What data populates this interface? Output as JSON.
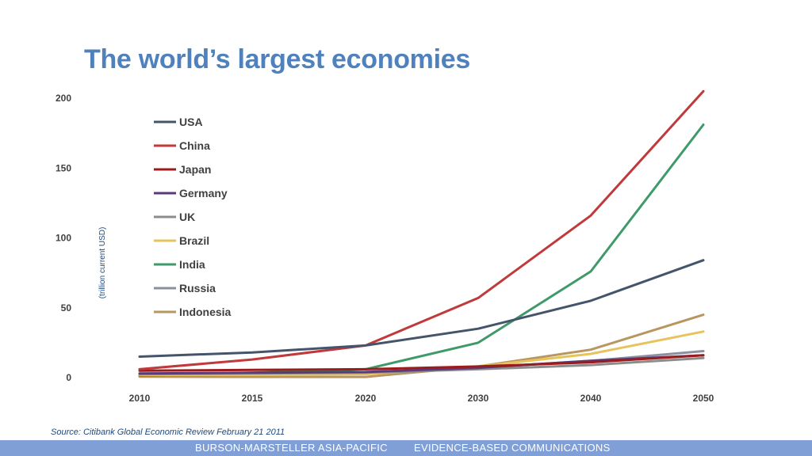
{
  "slide": {
    "title": "The world’s largest economies",
    "source": "Source: Citibank Global Economic Review February 21 2011",
    "footer_left": "BURSON-MARSTELLER ASIA-PACIFIC",
    "footer_right": "EVIDENCE-BASED COMMUNICATIONS"
  },
  "chart_data": {
    "type": "line",
    "title": "",
    "xlabel": "",
    "ylabel": "(trillion current USD)",
    "x": [
      2010,
      2015,
      2020,
      2030,
      2040,
      2050
    ],
    "x_ticks": [
      "2010",
      "2015",
      "2020",
      "2030",
      "2040",
      "2050"
    ],
    "y_ticks": [
      0,
      50,
      100,
      150,
      200
    ],
    "ylim": [
      0,
      200
    ],
    "grid": false,
    "legend_position": "top-left",
    "series": [
      {
        "name": "USA",
        "color": "#44546a",
        "values": [
          15,
          18,
          23,
          35,
          55,
          84
        ]
      },
      {
        "name": "China",
        "color": "#c0393b",
        "values": [
          6,
          13,
          23,
          57,
          116,
          205
        ]
      },
      {
        "name": "Japan",
        "color": "#9b1c1c",
        "values": [
          5,
          5.5,
          6,
          8,
          11,
          16
        ]
      },
      {
        "name": "Germany",
        "color": "#5b3a7a",
        "values": [
          3,
          3.5,
          4,
          7,
          12,
          16
        ]
      },
      {
        "name": "UK",
        "color": "#8c8c8c",
        "values": [
          2.5,
          3,
          3.5,
          6,
          9,
          14
        ]
      },
      {
        "name": "Brazil",
        "color": "#e6c35c",
        "values": [
          2,
          2,
          2.5,
          8,
          17,
          33
        ]
      },
      {
        "name": "India",
        "color": "#3f9a69",
        "values": [
          1.5,
          3.5,
          6,
          25,
          76,
          181
        ]
      },
      {
        "name": "Russia",
        "color": "#8b8fa0",
        "values": [
          1.5,
          2,
          3,
          7,
          12,
          19
        ]
      },
      {
        "name": "Indonesia",
        "color": "#b9955f",
        "values": [
          0.7,
          0.5,
          0.5,
          8,
          20,
          45
        ]
      }
    ]
  }
}
